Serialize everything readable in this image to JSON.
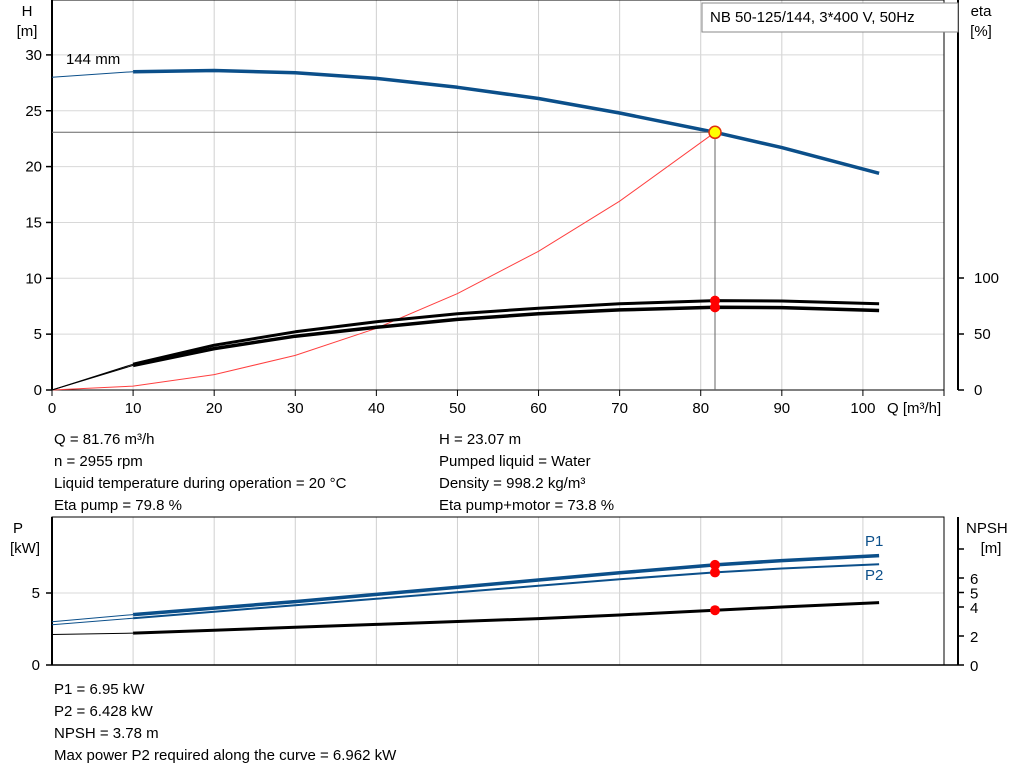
{
  "chart_data": [
    {
      "type": "line",
      "title": "NB 50-125/144, 3*400 V, 50Hz",
      "xlabel": "Q [m³/h]",
      "ylabel_left": "H\n[m]",
      "ylabel_right": "eta\n[%]",
      "xlim": [
        0,
        110
      ],
      "ylim_left": [
        0,
        32
      ],
      "ylim_right": [
        0,
        100
      ],
      "x_ticks": [
        0,
        10,
        20,
        30,
        40,
        50,
        60,
        70,
        80,
        90,
        100
      ],
      "y_left_ticks": [
        0,
        5,
        10,
        15,
        20,
        25,
        30
      ],
      "y_right_ticks": [
        0,
        50,
        100
      ],
      "grid": true,
      "impeller_label": "144 mm",
      "series": [
        {
          "name": "144 mm",
          "axis": "left",
          "color": "#0b4f8a",
          "x": [
            0,
            10,
            20,
            30,
            40,
            50,
            60,
            70,
            81.76,
            90,
            102
          ],
          "y": [
            28.0,
            28.5,
            28.6,
            28.4,
            27.9,
            27.1,
            26.1,
            24.8,
            23.07,
            21.7,
            19.4
          ]
        },
        {
          "axis": "right",
          "color": "#000000",
          "x": [
            0,
            10,
            20,
            30,
            40,
            50,
            60,
            70,
            81.76,
            90,
            102
          ],
          "y": [
            0,
            22,
            37,
            48,
            56,
            63,
            68,
            71.5,
            73.8,
            73.6,
            71
          ]
        },
        {
          "axis": "right",
          "color": "#000000",
          "x": [
            0,
            10,
            20,
            30,
            40,
            50,
            60,
            70,
            81.76,
            90,
            102
          ],
          "y": [
            0,
            23,
            40,
            52,
            61,
            68,
            73,
            77,
            79.8,
            79.5,
            77
          ]
        },
        {
          "axis": "left",
          "color": "#ff4040",
          "type": "system",
          "x": [
            0,
            10,
            20,
            30,
            40,
            50,
            60,
            70,
            81.76
          ],
          "y": [
            0,
            0.35,
            1.38,
            3.1,
            5.52,
            8.63,
            12.42,
            16.9,
            23.07
          ]
        }
      ],
      "duty_point": {
        "Q": 81.76,
        "H": 23.07,
        "eta_pump": 79.8,
        "eta_pump_motor": 73.8
      }
    },
    {
      "type": "line",
      "ylabel_left": "P\n[kW]",
      "ylabel_right": "NPSH\n[m]",
      "xlim": [
        0,
        110
      ],
      "ylim_left": [
        0,
        10
      ],
      "y_left_ticks": [
        0,
        5
      ],
      "y_right_ticks": [
        0,
        2,
        4,
        5,
        6,
        8
      ],
      "y_right_tick_labels": [
        "0",
        "2",
        "4",
        "5",
        "6",
        ""
      ],
      "grid": true,
      "series": [
        {
          "name": "P1",
          "color": "#0b4f8a",
          "x": [
            0,
            10,
            20,
            30,
            40,
            50,
            60,
            70,
            81.76,
            90,
            102
          ],
          "y": [
            3.0,
            3.5,
            3.95,
            4.4,
            4.9,
            5.4,
            5.9,
            6.4,
            6.95,
            7.25,
            7.6
          ]
        },
        {
          "name": "P2",
          "color": "#0b4f8a",
          "x": [
            0,
            10,
            20,
            30,
            40,
            50,
            60,
            70,
            81.76,
            90,
            102
          ],
          "y": [
            2.8,
            3.25,
            3.7,
            4.15,
            4.6,
            5.05,
            5.5,
            5.95,
            6.428,
            6.7,
            7.0
          ]
        },
        {
          "color": "#000000",
          "x": [
            0,
            10,
            20,
            30,
            40,
            50,
            60,
            70,
            81.76,
            90,
            102
          ],
          "y": [
            2.1,
            2.2,
            2.4,
            2.6,
            2.8,
            3.0,
            3.2,
            3.45,
            3.78,
            4.0,
            4.3
          ]
        }
      ],
      "duty_point": {
        "Q": 81.76,
        "P1": 6.95,
        "P2": 6.428,
        "NPSH": 3.78
      }
    }
  ],
  "info_top": {
    "left": [
      "Q = 81.76 m³/h",
      "n = 2955 rpm",
      "Liquid temperature during operation = 20 °C",
      "Eta pump = 79.8 %"
    ],
    "right": [
      "H = 23.07 m",
      "Pumped liquid = Water",
      "Density = 998.2 kg/m³",
      "Eta pump+motor = 73.8 %"
    ]
  },
  "info_bottom": [
    "P1 = 6.95 kW",
    "P2 = 6.428 kW",
    "NPSH = 3.78 m",
    "Max power P2 required along the curve = 6.962 kW"
  ]
}
